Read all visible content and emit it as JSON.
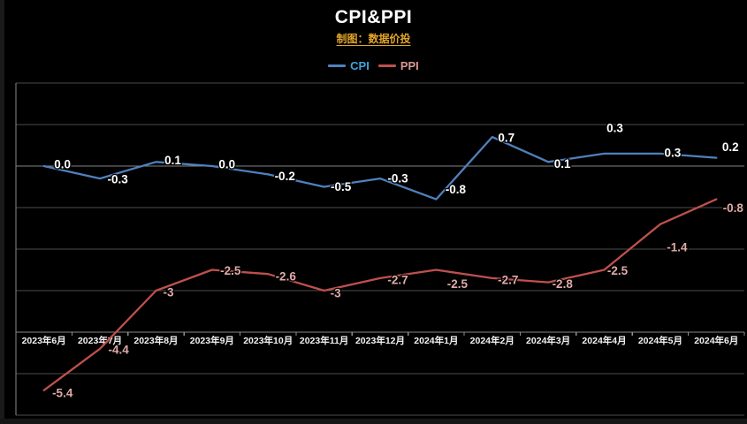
{
  "header": {
    "title": "CPI&PPI",
    "subtitle": "制图：数据价投"
  },
  "chart_data": {
    "type": "line",
    "categories": [
      "2023年6月",
      "2023年7月",
      "2023年8月",
      "2023年9月",
      "2023年10月",
      "2023年11月",
      "2023年12月",
      "2024年1月",
      "2024年2月",
      "2024年3月",
      "2024年4月",
      "2024年5月",
      "2024年6月"
    ],
    "series": [
      {
        "name": "CPI",
        "line_color": "#4f81bd",
        "legend_text_color": "#3aa5e0",
        "label_color": "#ffffff",
        "values": [
          0.0,
          -0.3,
          0.1,
          0.0,
          -0.2,
          -0.5,
          -0.3,
          -0.8,
          0.7,
          0.1,
          0.3,
          0.3,
          0.2
        ],
        "point_labels": [
          "0.0",
          "-0.3",
          "0.1",
          "0.0",
          "-0.2",
          "-0.5",
          "-0.3",
          "-0.8",
          "0.7",
          "0.1",
          "0.3",
          "0.3",
          "0.2"
        ],
        "label_offsets": [
          [
            21,
            -2
          ],
          [
            20,
            1
          ],
          [
            19,
            -2
          ],
          [
            17,
            -2
          ],
          [
            19,
            2
          ],
          [
            19,
            0
          ],
          [
            20,
            0
          ],
          [
            22,
            -11
          ],
          [
            16,
            1
          ],
          [
            16,
            2
          ],
          [
            12,
            -29
          ],
          [
            14,
            -1
          ],
          [
            16,
            -12
          ]
        ]
      },
      {
        "name": "PPI",
        "line_color": "#bf504d",
        "legend_text_color": "#d99694",
        "label_color": "#dfaca8",
        "values": [
          -5.4,
          -4.4,
          -3,
          -2.5,
          -2.6,
          -3,
          -2.7,
          -2.5,
          -2.7,
          -2.8,
          -2.5,
          -1.4,
          -0.8
        ],
        "point_labels": [
          "-5.4",
          "-4.4",
          "-3",
          "-2.5",
          "-2.6",
          "-3",
          "-2.7",
          "-2.5",
          "-2.7",
          "-2.8",
          "-2.5",
          "-1.4",
          "-0.8"
        ],
        "label_offsets": [
          [
            21,
            3
          ],
          [
            21,
            1
          ],
          [
            14,
            2
          ],
          [
            21,
            1
          ],
          [
            20,
            3
          ],
          [
            13,
            3
          ],
          [
            20,
            2
          ],
          [
            24,
            16
          ],
          [
            18,
            2
          ],
          [
            16,
            2
          ],
          [
            15,
            1
          ],
          [
            19,
            26
          ],
          [
            19,
            10
          ]
        ]
      }
    ],
    "title": "CPI&PPI",
    "xlabel": "",
    "ylabel": "",
    "ylim": [
      -6,
      2
    ],
    "grid_step": 1,
    "grid": true,
    "zero_line_value": 0,
    "axis_cross_value": -4,
    "legend_position": "top",
    "colors": {
      "background": "#000000",
      "grid": "#4d4d4d",
      "grid_bright": "#858585",
      "axis": "#909090",
      "plot_border": "#8a8a8a",
      "tick_label": "#f2f2f2",
      "title": "#ffffff",
      "subtitle": "#e2a52a"
    }
  }
}
